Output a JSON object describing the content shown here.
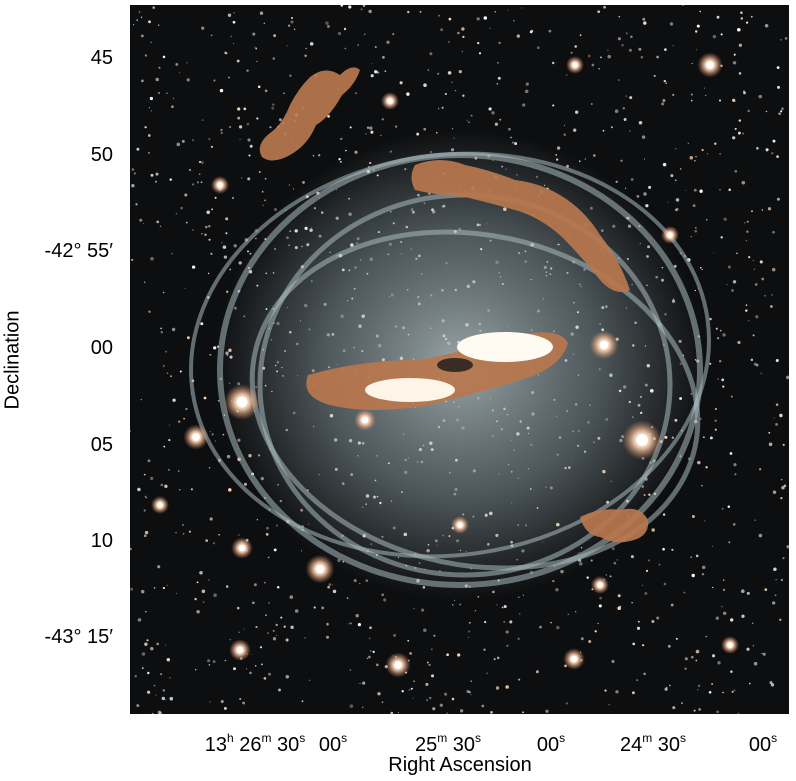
{
  "figure": {
    "y_axis": {
      "label": "Declination",
      "ticks": [
        {
          "text": "45"
        },
        {
          "text": "50"
        },
        {
          "text": "-42° 55′"
        },
        {
          "text": "00"
        },
        {
          "text": "05"
        },
        {
          "text": "10"
        },
        {
          "text": "-43° 15′"
        }
      ]
    },
    "x_axis": {
      "label": "Right Ascension",
      "ticks": [
        {
          "h": "13",
          "h_unit": "h",
          "m": "26",
          "m_unit": "m",
          "s": "30",
          "s_unit": "s"
        },
        {
          "s": "00",
          "s_unit": "s"
        },
        {
          "m": "25",
          "m_unit": "m",
          "s": "30",
          "s_unit": "s"
        },
        {
          "s": "00",
          "s_unit": "s"
        },
        {
          "m": "24",
          "m_unit": "m",
          "s": "30",
          "s_unit": "s"
        },
        {
          "s": "00",
          "s_unit": "s"
        }
      ]
    },
    "image": {
      "subject": "galaxy-with-shell-rings",
      "background_color": "#0d0e10",
      "halo_color": "#9fb3b8",
      "overlay_color": "#b8774e",
      "core_color": "#fffaf2",
      "star_colors": [
        "#ffffff",
        "#ffd9b8",
        "#e8875a"
      ]
    }
  }
}
